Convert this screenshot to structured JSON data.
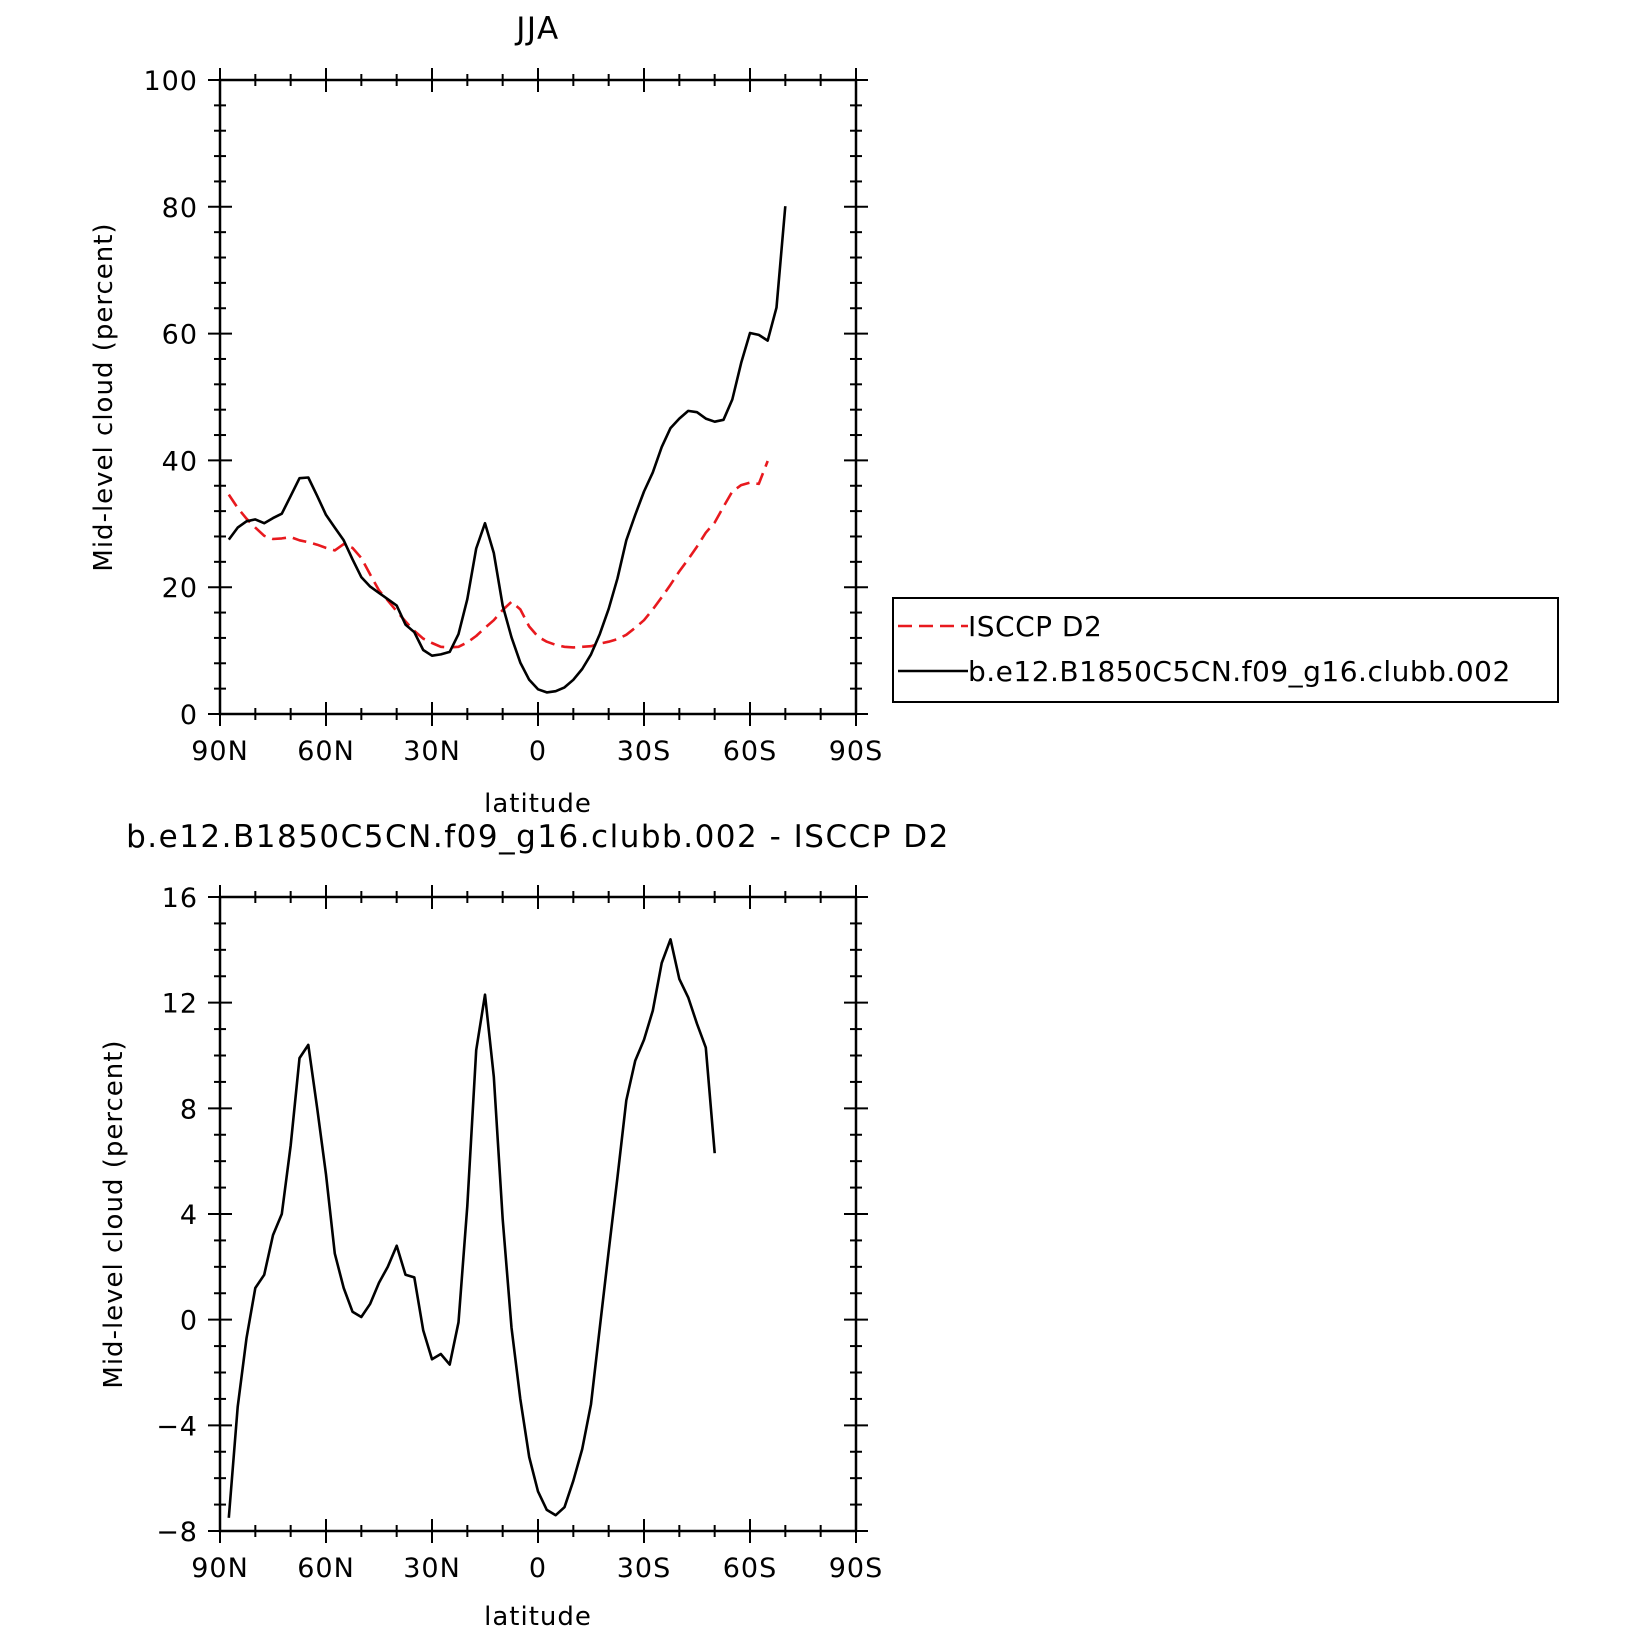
{
  "chart_data": [
    {
      "type": "line",
      "title": "JJA",
      "xlabel": "latitude",
      "ylabel": "Mid-level cloud (percent)",
      "xlim": [
        90,
        -90
      ],
      "ylim": [
        0,
        100
      ],
      "xticks": [
        {
          "value": 90,
          "label": "90N"
        },
        {
          "value": 60,
          "label": "60N"
        },
        {
          "value": 30,
          "label": "30N"
        },
        {
          "value": 0,
          "label": "0"
        },
        {
          "value": -30,
          "label": "30S"
        },
        {
          "value": -60,
          "label": "60S"
        },
        {
          "value": -90,
          "label": "90S"
        }
      ],
      "yticks": [
        {
          "value": 0,
          "label": "0"
        },
        {
          "value": 20,
          "label": "20"
        },
        {
          "value": 40,
          "label": "40"
        },
        {
          "value": 60,
          "label": "60"
        },
        {
          "value": 80,
          "label": "80"
        },
        {
          "value": 100,
          "label": "100"
        }
      ],
      "grid": false,
      "legend_position": "right",
      "series": [
        {
          "name": "ISCCP D2",
          "color": "#e8191e",
          "dash": "dashed",
          "points": [
            [
              87.5,
              34.6
            ],
            [
              85,
              32.5
            ],
            [
              82.5,
              30.8
            ],
            [
              80,
              29.4
            ],
            [
              77.5,
              28.1
            ],
            [
              75,
              27.6
            ],
            [
              72.5,
              27.7
            ],
            [
              70,
              27.9
            ],
            [
              67.5,
              27.4
            ],
            [
              65,
              27.1
            ],
            [
              62.5,
              26.7
            ],
            [
              60,
              26.2
            ],
            [
              57.5,
              25.8
            ],
            [
              55,
              26.8
            ],
            [
              52.5,
              26.2
            ],
            [
              50,
              24.6
            ],
            [
              47.5,
              22.0
            ],
            [
              45,
              19.5
            ],
            [
              42.5,
              17.9
            ],
            [
              40,
              16.2
            ],
            [
              37.5,
              14.6
            ],
            [
              35,
              13.1
            ],
            [
              32.5,
              11.9
            ],
            [
              30,
              11.2
            ],
            [
              27.5,
              10.6
            ],
            [
              25,
              10.5
            ],
            [
              22.5,
              10.6
            ],
            [
              20,
              11.3
            ],
            [
              17.5,
              12.3
            ],
            [
              15,
              13.6
            ],
            [
              12.5,
              14.8
            ],
            [
              10,
              16.4
            ],
            [
              7.5,
              17.7
            ],
            [
              5,
              16.5
            ],
            [
              2.5,
              13.8
            ],
            [
              0,
              12.2
            ],
            [
              -2.5,
              11.4
            ],
            [
              -5,
              10.9
            ],
            [
              -7.5,
              10.6
            ],
            [
              -10,
              10.5
            ],
            [
              -12.5,
              10.6
            ],
            [
              -15,
              10.7
            ],
            [
              -17.5,
              11.1
            ],
            [
              -20,
              11.4
            ],
            [
              -22.5,
              11.8
            ],
            [
              -25,
              12.5
            ],
            [
              -27.5,
              13.6
            ],
            [
              -30,
              14.8
            ],
            [
              -32.5,
              16.5
            ],
            [
              -35,
              18.4
            ],
            [
              -37.5,
              20.4
            ],
            [
              -40,
              22.5
            ],
            [
              -42.5,
              24.4
            ],
            [
              -45,
              26.4
            ],
            [
              -47.5,
              28.6
            ],
            [
              -50,
              30.2
            ],
            [
              -52.5,
              32.7
            ],
            [
              -55,
              35.1
            ],
            [
              -57.5,
              36.1
            ],
            [
              -60,
              36.5
            ],
            [
              -62.5,
              36.3
            ],
            [
              -65,
              39.9
            ]
          ]
        },
        {
          "name": "b.e12.B1850C5CN.f09_g16.clubb.002",
          "color": "#000000",
          "dash": "solid",
          "points": [
            [
              87.5,
              27.5
            ],
            [
              85,
              29.4
            ],
            [
              82.5,
              30.4
            ],
            [
              80,
              30.7
            ],
            [
              77.5,
              30.1
            ],
            [
              75,
              30.9
            ],
            [
              72.5,
              31.6
            ],
            [
              70,
              34.4
            ],
            [
              67.5,
              37.2
            ],
            [
              65,
              37.3
            ],
            [
              62.5,
              34.4
            ],
            [
              60,
              31.4
            ],
            [
              57.5,
              29.4
            ],
            [
              55,
              27.4
            ],
            [
              52.5,
              24.4
            ],
            [
              50,
              21.6
            ],
            [
              47.5,
              20.1
            ],
            [
              45,
              19.1
            ],
            [
              42.5,
              18.1
            ],
            [
              40,
              17.1
            ],
            [
              37.5,
              14.1
            ],
            [
              35,
              12.9
            ],
            [
              32.5,
              10.1
            ],
            [
              30,
              9.2
            ],
            [
              27.5,
              9.4
            ],
            [
              25,
              9.8
            ],
            [
              22.5,
              12.6
            ],
            [
              20,
              18.1
            ],
            [
              17.5,
              26.1
            ],
            [
              15,
              30.1
            ],
            [
              12.5,
              25.4
            ],
            [
              10,
              17.1
            ],
            [
              7.5,
              12.1
            ],
            [
              5,
              8.1
            ],
            [
              2.5,
              5.4
            ],
            [
              0,
              3.9
            ],
            [
              -2.5,
              3.4
            ],
            [
              -5,
              3.6
            ],
            [
              -7.5,
              4.2
            ],
            [
              -10,
              5.4
            ],
            [
              -12.5,
              7.1
            ],
            [
              -15,
              9.4
            ],
            [
              -17.5,
              12.6
            ],
            [
              -20,
              16.6
            ],
            [
              -22.5,
              21.4
            ],
            [
              -25,
              27.4
            ],
            [
              -27.5,
              31.4
            ],
            [
              -30,
              35.1
            ],
            [
              -32.5,
              38.1
            ],
            [
              -35,
              42.1
            ],
            [
              -37.5,
              45.1
            ],
            [
              -40,
              46.6
            ],
            [
              -42.5,
              47.8
            ],
            [
              -45,
              47.6
            ],
            [
              -47.5,
              46.6
            ],
            [
              -50,
              46.1
            ],
            [
              -52.5,
              46.4
            ],
            [
              -55,
              49.6
            ],
            [
              -57.5,
              55.4
            ],
            [
              -60,
              60.1
            ],
            [
              -62.5,
              59.8
            ],
            [
              -65,
              58.9
            ],
            [
              -67.5,
              64.1
            ],
            [
              -70,
              80.1
            ]
          ]
        }
      ]
    },
    {
      "type": "line",
      "title": "b.e12.B1850C5CN.f09_g16.clubb.002 - ISCCP D2",
      "xlabel": "latitude",
      "ylabel": "Mid-level cloud (percent)",
      "xlim": [
        90,
        -90
      ],
      "ylim": [
        -8,
        16
      ],
      "xticks": [
        {
          "value": 90,
          "label": "90N"
        },
        {
          "value": 60,
          "label": "60N"
        },
        {
          "value": 30,
          "label": "30N"
        },
        {
          "value": 0,
          "label": "0"
        },
        {
          "value": -30,
          "label": "30S"
        },
        {
          "value": -60,
          "label": "60S"
        },
        {
          "value": -90,
          "label": "90S"
        }
      ],
      "yticks": [
        {
          "value": -8,
          "label": "−8"
        },
        {
          "value": -4,
          "label": "−4"
        },
        {
          "value": 0,
          "label": "0"
        },
        {
          "value": 4,
          "label": "4"
        },
        {
          "value": 8,
          "label": "8"
        },
        {
          "value": 12,
          "label": "12"
        },
        {
          "value": 16,
          "label": "16"
        }
      ],
      "grid": false,
      "series": [
        {
          "color": "#000000",
          "dash": "solid",
          "points": [
            [
              87.5,
              -7.5
            ],
            [
              85,
              -3.3
            ],
            [
              82.5,
              -0.7
            ],
            [
              80,
              1.2
            ],
            [
              77.5,
              1.7
            ],
            [
              75,
              3.2
            ],
            [
              72.5,
              4.0
            ],
            [
              70,
              6.6
            ],
            [
              67.5,
              9.9
            ],
            [
              65,
              10.4
            ],
            [
              62.5,
              8.0
            ],
            [
              60,
              5.5
            ],
            [
              57.5,
              2.5
            ],
            [
              55,
              1.2
            ],
            [
              52.5,
              0.3
            ],
            [
              50,
              0.1
            ],
            [
              47.5,
              0.6
            ],
            [
              45,
              1.4
            ],
            [
              42.5,
              2.0
            ],
            [
              40,
              2.8
            ],
            [
              37.5,
              1.7
            ],
            [
              35,
              1.6
            ],
            [
              32.5,
              -0.4
            ],
            [
              30,
              -1.5
            ],
            [
              27.5,
              -1.3
            ],
            [
              25,
              -1.7
            ],
            [
              22.5,
              -0.1
            ],
            [
              20,
              4.3
            ],
            [
              17.5,
              10.2
            ],
            [
              15,
              12.3
            ],
            [
              12.5,
              9.2
            ],
            [
              10,
              3.8
            ],
            [
              7.5,
              -0.3
            ],
            [
              5,
              -3.0
            ],
            [
              2.5,
              -5.2
            ],
            [
              0,
              -6.5
            ],
            [
              -2.5,
              -7.2
            ],
            [
              -5,
              -7.4
            ],
            [
              -7.5,
              -7.1
            ],
            [
              -10,
              -6.1
            ],
            [
              -12.5,
              -4.9
            ],
            [
              -15,
              -3.2
            ],
            [
              -17.5,
              -0.3
            ],
            [
              -20,
              2.6
            ],
            [
              -22.5,
              5.4
            ],
            [
              -25,
              8.3
            ],
            [
              -27.5,
              9.8
            ],
            [
              -30,
              10.6
            ],
            [
              -32.5,
              11.7
            ],
            [
              -35,
              13.5
            ],
            [
              -37.5,
              14.4
            ],
            [
              -40,
              12.9
            ],
            [
              -42.5,
              12.2
            ],
            [
              -45,
              11.2
            ],
            [
              -47.5,
              10.3
            ],
            [
              -50,
              6.3
            ]
          ]
        }
      ]
    }
  ]
}
